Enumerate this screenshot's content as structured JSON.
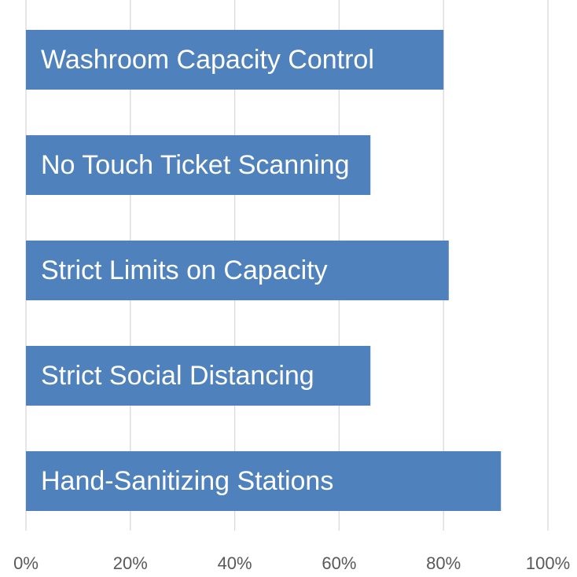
{
  "chart_data": {
    "type": "bar",
    "orientation": "horizontal",
    "categories": [
      "Washroom Capacity Control",
      "No Touch Ticket Scanning",
      "Strict Limits on Capacity",
      "Strict Social Distancing",
      "Hand-Sanitizing Stations"
    ],
    "values": [
      80,
      66,
      81,
      66,
      91
    ],
    "color": "#4f81bd",
    "xlim": [
      0,
      100
    ],
    "xticks": [
      {
        "value": 0,
        "label": "0%"
      },
      {
        "value": 20,
        "label": "20%"
      },
      {
        "value": 40,
        "label": "40%"
      },
      {
        "value": 60,
        "label": "60%"
      },
      {
        "value": 80,
        "label": "80%"
      },
      {
        "value": 100,
        "label": "100%"
      }
    ],
    "grid": true
  }
}
